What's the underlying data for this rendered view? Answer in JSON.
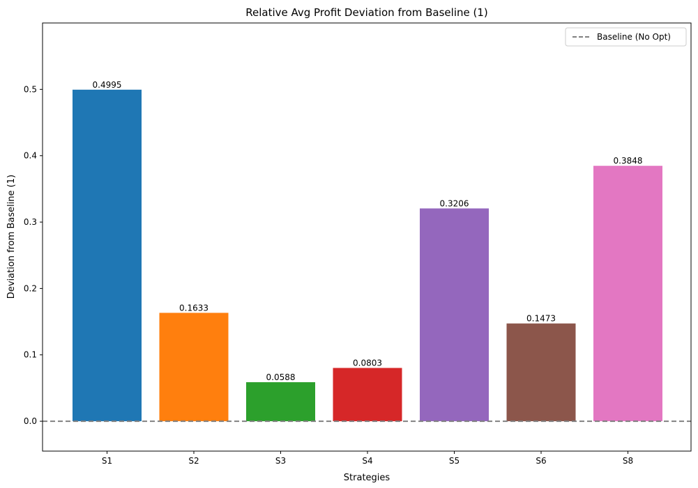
{
  "chart_data": {
    "type": "bar",
    "title": "Relative Avg Profit Deviation from Baseline (1)",
    "xlabel": "Strategies",
    "ylabel": "Deviation from Baseline (1)",
    "categories": [
      "S1",
      "S2",
      "S3",
      "S4",
      "S5",
      "S6",
      "S8"
    ],
    "values": [
      0.4995,
      0.1633,
      0.0588,
      0.0803,
      0.3206,
      0.1473,
      0.3848
    ],
    "data_labels": [
      "0.4995",
      "0.1633",
      "0.0588",
      "0.0803",
      "0.3206",
      "0.1473",
      "0.3848"
    ],
    "colors": [
      "#1f77b4",
      "#ff7f0e",
      "#2ca02c",
      "#d62728",
      "#9467bd",
      "#8c564b",
      "#e377c2"
    ],
    "ylim": [
      -0.045,
      0.6
    ],
    "yticks": [
      0.0,
      0.1,
      0.2,
      0.3,
      0.4,
      0.5
    ],
    "ytick_labels": [
      "0.0",
      "0.1",
      "0.2",
      "0.3",
      "0.4",
      "0.5"
    ],
    "baseline": {
      "value": 0,
      "label": "Baseline (No Opt)",
      "color": "#808080",
      "style": "dashed"
    },
    "legend_placement": "top-right",
    "grid": false
  }
}
